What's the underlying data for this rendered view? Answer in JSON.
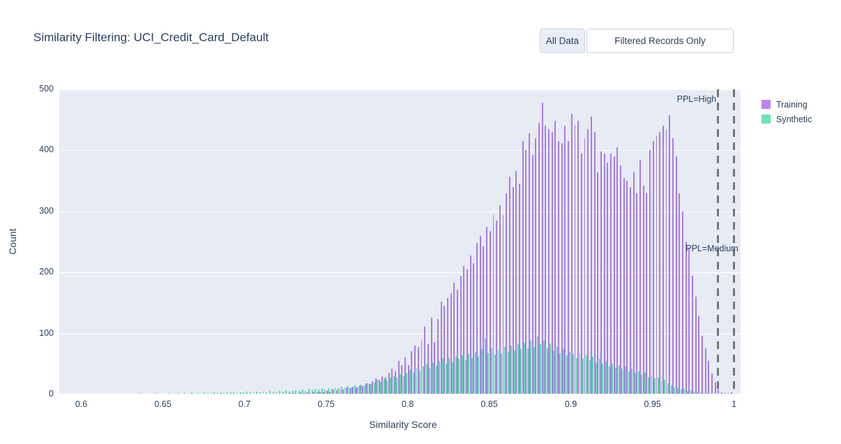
{
  "title": "Similarity Filtering: UCI_Credit_Card_Default",
  "toolbar": {
    "buttons": [
      {
        "label": "All Data",
        "active": true
      },
      {
        "label": "Filtered Records Only",
        "active": false
      }
    ]
  },
  "chart_data": {
    "type": "bar",
    "title": "Similarity Filtering: UCI_Credit_Card_Default",
    "xlabel": "Similarity Score",
    "ylabel": "Count",
    "xlim": [
      0.5865,
      1.004
    ],
    "ylim": [
      0,
      500
    ],
    "x_ticks": [
      0.6,
      0.65,
      0.7,
      0.75,
      0.8,
      0.85,
      0.9,
      0.95,
      1
    ],
    "y_ticks": [
      0,
      100,
      200,
      300,
      400,
      500
    ],
    "grid": true,
    "legend_position": "right-top",
    "plot_bg": "#e7ebf4",
    "x_start": 0.59,
    "x_bin_width": 0.002,
    "series": [
      {
        "name": "Training",
        "color": "#a97ce4",
        "legend_color": "#bd84ee",
        "values": [
          0,
          0,
          0,
          0,
          0,
          0,
          0,
          0,
          0,
          0,
          0,
          0,
          0,
          0,
          0,
          0,
          0,
          0,
          0,
          0,
          0,
          0,
          0,
          0,
          0,
          0,
          0,
          0,
          0,
          0,
          0,
          0,
          0,
          0,
          0,
          0,
          0,
          0,
          0,
          0,
          0,
          0,
          0,
          0,
          0,
          0,
          0,
          0,
          0,
          0,
          0,
          0,
          0,
          0,
          0,
          0,
          0,
          0,
          1,
          0,
          0,
          0,
          0,
          0,
          0,
          1,
          0,
          0,
          0,
          2,
          2,
          1,
          3,
          2,
          3,
          2,
          4,
          3,
          5,
          4,
          6,
          5,
          8,
          7,
          9,
          8,
          11,
          10,
          13,
          12,
          15,
          14,
          18,
          17,
          22,
          26,
          24,
          30,
          28,
          35,
          42,
          38,
          55,
          48,
          61,
          48,
          71,
          80,
          78,
          88,
          111,
          82,
          126,
          86,
          124,
          152,
          145,
          158,
          166,
          183,
          172,
          195,
          210,
          205,
          228,
          215,
          248,
          260,
          243,
          275,
          268,
          294,
          285,
          310,
          294,
          330,
          357,
          340,
          366,
          345,
          415,
          400,
          428,
          392,
          420,
          445,
          478,
          440,
          435,
          430,
          448,
          415,
          412,
          440,
          415,
          460,
          442,
          448,
          395,
          420,
          435,
          455,
          430,
          364,
          398,
          395,
          380,
          395,
          390,
          405,
          375,
          355,
          350,
          340,
          365,
          330,
          385,
          342,
          330,
          400,
          415,
          425,
          430,
          440,
          435,
          458,
          420,
          390,
          330,
          300,
          250,
          240,
          195,
          160,
          128,
          96,
          75,
          55,
          34,
          20,
          8,
          3,
          2,
          2,
          4
        ]
      },
      {
        "name": "Synthetic",
        "color": "#5dd9a9",
        "legend_color": "#6ce4b6",
        "values": [
          0,
          1,
          0,
          0,
          0,
          0,
          1,
          0,
          0,
          0,
          0,
          1,
          0,
          0,
          1,
          0,
          1,
          0,
          1,
          0,
          1,
          0,
          2,
          0,
          1,
          1,
          0,
          2,
          1,
          0,
          1,
          2,
          1,
          0,
          2,
          1,
          2,
          1,
          3,
          1,
          2,
          1,
          3,
          2,
          2,
          3,
          2,
          4,
          2,
          3,
          3,
          4,
          2,
          4,
          3,
          5,
          3,
          4,
          5,
          4,
          5,
          4,
          6,
          5,
          4,
          6,
          5,
          7,
          5,
          6,
          7,
          6,
          8,
          6,
          9,
          7,
          9,
          8,
          10,
          8,
          10,
          9,
          12,
          10,
          13,
          11,
          14,
          12,
          15,
          13,
          16,
          15,
          18,
          17,
          20,
          24,
          21,
          26,
          23,
          28,
          30,
          27,
          33,
          30,
          36,
          40,
          36,
          44,
          39,
          46,
          50,
          44,
          53,
          47,
          55,
          58,
          50,
          60,
          53,
          62,
          58,
          64,
          56,
          66,
          60,
          70,
          62,
          74,
          92,
          68,
          75,
          65,
          72,
          68,
          78,
          70,
          80,
          72,
          82,
          74,
          85,
          75,
          88,
          78,
          95,
          82,
          88,
          76,
          84,
          72,
          78,
          68,
          74,
          64,
          70,
          66,
          60,
          68,
          58,
          64,
          56,
          62,
          52,
          58,
          50,
          54,
          46,
          50,
          44,
          48,
          42,
          46,
          38,
          42,
          36,
          38,
          32,
          35,
          28,
          31,
          26,
          28,
          22,
          24,
          18,
          15,
          12,
          10,
          8,
          9,
          6,
          7,
          5,
          4,
          3,
          2,
          2,
          1,
          1,
          1,
          0,
          1,
          0,
          0,
          0
        ]
      }
    ],
    "vlines": [
      {
        "x": 0.99,
        "label": "PPL=High",
        "label_y": 492,
        "label_dx": 2,
        "color": "#767676"
      },
      {
        "x": 1.0,
        "label": "PPL=Medium",
        "label_y": 247,
        "label_dx": -6,
        "color": "#767676"
      }
    ]
  }
}
